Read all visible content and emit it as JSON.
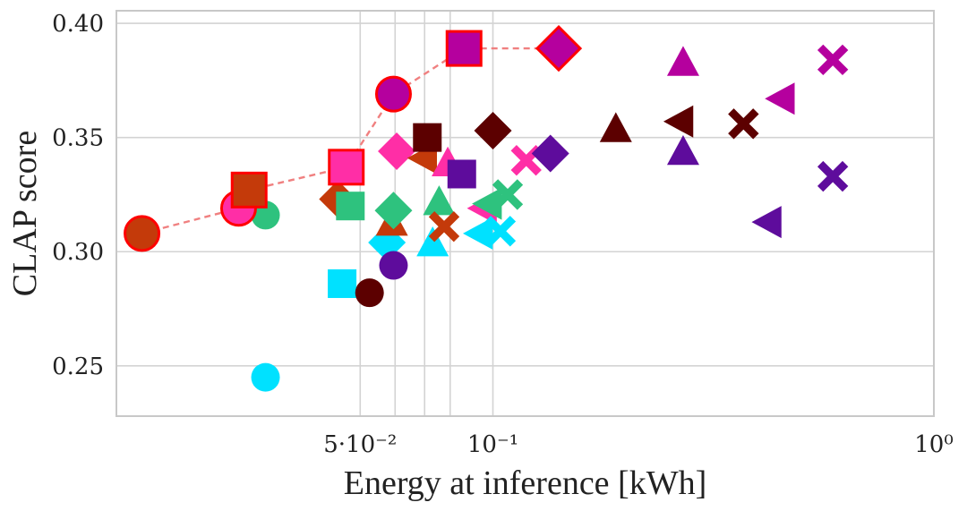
{
  "chart_data": {
    "type": "scatter",
    "title": "",
    "xlabel": "Energy at inference [kWh]",
    "ylabel": "CLAP score",
    "x_scale": "log",
    "xlim": [
      0.014,
      1.0
    ],
    "ylim": [
      0.228,
      0.4055
    ],
    "grid": true,
    "legend": "none",
    "x_ticks": [
      {
        "value": 0.05,
        "label": "5·10⁻²"
      },
      {
        "value": 0.1,
        "label": "10⁻¹"
      },
      {
        "value": 1.0,
        "label": "10⁰"
      }
    ],
    "x_minor_gridlines": [
      0.06,
      0.07,
      0.08
    ],
    "y_ticks": [
      {
        "value": 0.25,
        "label": "0.25"
      },
      {
        "value": 0.3,
        "label": "0.30"
      },
      {
        "value": 0.35,
        "label": "0.35"
      },
      {
        "value": 0.4,
        "label": "0.40"
      }
    ],
    "pareto_front": {
      "color": "#f08080",
      "style": "dashed",
      "points": [
        [
          0.016,
          0.308
        ],
        [
          0.0265,
          0.319
        ],
        [
          0.028,
          0.327
        ],
        [
          0.0465,
          0.337
        ],
        [
          0.0595,
          0.369
        ],
        [
          0.086,
          0.389
        ],
        [
          0.141,
          0.389
        ]
      ]
    },
    "points": [
      {
        "x": 0.016,
        "y": 0.308,
        "shape": "circle",
        "color": "#c43a0a",
        "pareto": true
      },
      {
        "x": 0.0265,
        "y": 0.319,
        "shape": "circle",
        "color": "#ff2ea6",
        "pareto": true
      },
      {
        "x": 0.028,
        "y": 0.327,
        "shape": "square",
        "color": "#c43a0a",
        "pareto": true
      },
      {
        "x": 0.0465,
        "y": 0.337,
        "shape": "square",
        "color": "#ff2ea6",
        "pareto": true
      },
      {
        "x": 0.0595,
        "y": 0.369,
        "shape": "circle",
        "color": "#b5009e",
        "pareto": true
      },
      {
        "x": 0.086,
        "y": 0.389,
        "shape": "square",
        "color": "#b5009e",
        "pareto": true
      },
      {
        "x": 0.141,
        "y": 0.389,
        "shape": "diamond",
        "color": "#b5009e",
        "pareto": true
      },
      {
        "x": 0.0305,
        "y": 0.316,
        "shape": "circle",
        "color": "#2ec27e"
      },
      {
        "x": 0.0305,
        "y": 0.245,
        "shape": "circle",
        "color": "#00e1ff"
      },
      {
        "x": 0.0445,
        "y": 0.323,
        "shape": "diamond",
        "color": "#c43a0a"
      },
      {
        "x": 0.0475,
        "y": 0.32,
        "shape": "square",
        "color": "#2ec27e"
      },
      {
        "x": 0.0455,
        "y": 0.286,
        "shape": "square",
        "color": "#00e1ff"
      },
      {
        "x": 0.0525,
        "y": 0.282,
        "shape": "circle",
        "color": "#5c0000"
      },
      {
        "x": 0.0575,
        "y": 0.304,
        "shape": "diamond",
        "color": "#00e1ff"
      },
      {
        "x": 0.059,
        "y": 0.313,
        "shape": "triangle-up",
        "color": "#c43a0a"
      },
      {
        "x": 0.0595,
        "y": 0.318,
        "shape": "diamond",
        "color": "#2ec27e"
      },
      {
        "x": 0.0595,
        "y": 0.294,
        "shape": "circle",
        "color": "#5e0c9c"
      },
      {
        "x": 0.0605,
        "y": 0.344,
        "shape": "diamond",
        "color": "#ff2ea6"
      },
      {
        "x": 0.0695,
        "y": 0.341,
        "shape": "triangle-left",
        "color": "#c43a0a"
      },
      {
        "x": 0.071,
        "y": 0.35,
        "shape": "square",
        "color": "#5c0000"
      },
      {
        "x": 0.073,
        "y": 0.304,
        "shape": "triangle-up",
        "color": "#00e1ff"
      },
      {
        "x": 0.0755,
        "y": 0.322,
        "shape": "triangle-up",
        "color": "#2ec27e"
      },
      {
        "x": 0.0775,
        "y": 0.311,
        "shape": "x",
        "color": "#c43a0a"
      },
      {
        "x": 0.079,
        "y": 0.339,
        "shape": "triangle-up",
        "color": "#ff2ea6"
      },
      {
        "x": 0.085,
        "y": 0.334,
        "shape": "square",
        "color": "#5e0c9c"
      },
      {
        "x": 0.093,
        "y": 0.308,
        "shape": "triangle-left",
        "color": "#00e1ff"
      },
      {
        "x": 0.095,
        "y": 0.319,
        "shape": "triangle-left",
        "color": "#ff2ea6"
      },
      {
        "x": 0.0975,
        "y": 0.321,
        "shape": "triangle-left",
        "color": "#2ec27e"
      },
      {
        "x": 0.1,
        "y": 0.353,
        "shape": "diamond",
        "color": "#5c0000"
      },
      {
        "x": 0.104,
        "y": 0.309,
        "shape": "x",
        "color": "#00e1ff"
      },
      {
        "x": 0.108,
        "y": 0.325,
        "shape": "x",
        "color": "#2ec27e"
      },
      {
        "x": 0.119,
        "y": 0.34,
        "shape": "x",
        "color": "#ff2ea6"
      },
      {
        "x": 0.135,
        "y": 0.343,
        "shape": "diamond",
        "color": "#5e0c9c"
      },
      {
        "x": 0.19,
        "y": 0.354,
        "shape": "triangle-up",
        "color": "#5c0000"
      },
      {
        "x": 0.265,
        "y": 0.357,
        "shape": "triangle-left",
        "color": "#5c0000"
      },
      {
        "x": 0.27,
        "y": 0.344,
        "shape": "triangle-up",
        "color": "#5e0c9c"
      },
      {
        "x": 0.27,
        "y": 0.383,
        "shape": "triangle-up",
        "color": "#b5009e"
      },
      {
        "x": 0.37,
        "y": 0.356,
        "shape": "x",
        "color": "#5c0000"
      },
      {
        "x": 0.42,
        "y": 0.313,
        "shape": "triangle-left",
        "color": "#5e0c9c"
      },
      {
        "x": 0.45,
        "y": 0.367,
        "shape": "triangle-left",
        "color": "#b5009e"
      },
      {
        "x": 0.59,
        "y": 0.333,
        "shape": "x",
        "color": "#5e0c9c"
      },
      {
        "x": 0.59,
        "y": 0.384,
        "shape": "x",
        "color": "#b5009e"
      }
    ]
  }
}
